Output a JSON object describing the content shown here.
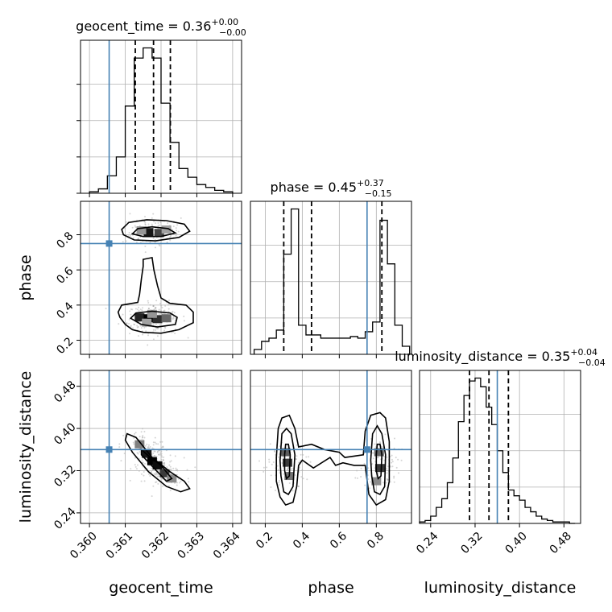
{
  "chart_data": {
    "type": "corner",
    "parameters": [
      "geocent_time",
      "phase",
      "luminosity_distance"
    ],
    "truths": {
      "geocent_time": 0.36055,
      "phase": 0.75,
      "luminosity_distance": 0.36
    },
    "titles": [
      {
        "param": "geocent_time",
        "name": "geocent_time = 0.36",
        "plus": "+0.00",
        "minus": "−0.00"
      },
      {
        "param": "phase",
        "name": "phase = 0.45",
        "plus": "+0.37",
        "minus": "−0.15"
      },
      {
        "param": "luminosity_distance",
        "name": "luminosity_distance = 0.35",
        "plus": "+0.04",
        "minus": "−0.04"
      }
    ],
    "axes": {
      "geocent_time": {
        "range": [
          0.35975,
          0.36425
        ],
        "ticks": [
          0.36,
          0.361,
          0.362,
          0.363,
          0.364
        ],
        "tick_labels": [
          "0.360",
          "0.361",
          "0.362",
          "0.363",
          "0.364"
        ]
      },
      "phase": {
        "range": [
          0.12,
          0.99
        ],
        "ticks": [
          0.2,
          0.4,
          0.6,
          0.8
        ],
        "tick_labels": [
          "0.2",
          "0.4",
          "0.6",
          "0.8"
        ]
      },
      "luminosity_distance": {
        "range": [
          0.22,
          0.51
        ],
        "ticks": [
          0.24,
          0.32,
          0.4,
          0.48
        ],
        "tick_labels": [
          "0.24",
          "0.32",
          "0.40",
          "0.48"
        ]
      }
    },
    "axis_labels": {
      "geocent_time": "geocent_time",
      "phase": "phase",
      "luminosity_distance": "luminosity_distance"
    },
    "histograms": {
      "geocent_time": {
        "quantiles": [
          0.36128,
          0.36179,
          0.36226
        ],
        "edges": [
          0.36,
          0.36025,
          0.3605,
          0.36075,
          0.361,
          0.36125,
          0.3615,
          0.36175,
          0.362,
          0.36225,
          0.3625,
          0.36275,
          0.363,
          0.36325,
          0.3635,
          0.36375,
          0.364
        ],
        "counts": [
          1,
          3,
          12,
          25,
          60,
          93,
          100,
          93,
          62,
          35,
          17,
          11,
          6,
          4,
          2,
          1
        ]
      },
      "phase": {
        "quantiles": [
          0.3,
          0.45,
          0.83
        ],
        "edges": [
          0.14,
          0.18,
          0.22,
          0.26,
          0.3,
          0.34,
          0.38,
          0.42,
          0.46,
          0.5,
          0.54,
          0.58,
          0.62,
          0.66,
          0.7,
          0.74,
          0.78,
          0.82,
          0.86,
          0.9,
          0.94,
          0.98
        ],
        "counts": [
          3,
          8,
          10,
          15,
          62,
          90,
          18,
          12,
          12,
          10,
          10,
          10,
          10,
          11,
          10,
          14,
          20,
          83,
          56,
          18,
          5
        ]
      },
      "luminosity_distance": {
        "quantiles": [
          0.31,
          0.345,
          0.38
        ],
        "edges": [
          0.22,
          0.23,
          0.24,
          0.25,
          0.26,
          0.27,
          0.28,
          0.29,
          0.3,
          0.31,
          0.32,
          0.33,
          0.34,
          0.35,
          0.36,
          0.37,
          0.38,
          0.39,
          0.4,
          0.41,
          0.42,
          0.43,
          0.44,
          0.45,
          0.46,
          0.47,
          0.48,
          0.49,
          0.5
        ],
        "counts": [
          1,
          2,
          5,
          11,
          17,
          28,
          45,
          70,
          88,
          98,
          100,
          94,
          80,
          68,
          50,
          35,
          23,
          19,
          16,
          11,
          8,
          5,
          3,
          2,
          1,
          1,
          1,
          0
        ]
      }
    },
    "joint": [
      {
        "x": "geocent_time",
        "y": "phase",
        "contours": [
          [
            [
              0.3609,
              0.83
            ],
            [
              0.3611,
              0.87
            ],
            [
              0.3616,
              0.885
            ],
            [
              0.36215,
              0.88
            ],
            [
              0.36265,
              0.86
            ],
            [
              0.3628,
              0.82
            ],
            [
              0.3625,
              0.785
            ],
            [
              0.36185,
              0.765
            ],
            [
              0.36125,
              0.77
            ],
            [
              0.36095,
              0.8
            ]
          ],
          [
            [
              0.3612,
              0.805
            ],
            [
              0.36135,
              0.835
            ],
            [
              0.36175,
              0.845
            ],
            [
              0.3622,
              0.835
            ],
            [
              0.3624,
              0.81
            ],
            [
              0.362,
              0.79
            ],
            [
              0.3615,
              0.79
            ]
          ],
          [
            [
              0.3608,
              0.36
            ],
            [
              0.3609,
              0.4
            ],
            [
              0.36135,
              0.415
            ],
            [
              0.3614,
              0.46
            ],
            [
              0.36145,
              0.55
            ],
            [
              0.3615,
              0.62
            ],
            [
              0.3615,
              0.66
            ],
            [
              0.36175,
              0.67
            ],
            [
              0.3618,
              0.6
            ],
            [
              0.3619,
              0.51
            ],
            [
              0.362,
              0.44
            ],
            [
              0.36225,
              0.41
            ],
            [
              0.3627,
              0.4
            ],
            [
              0.3629,
              0.36
            ],
            [
              0.3629,
              0.3
            ],
            [
              0.3625,
              0.26
            ],
            [
              0.362,
              0.24
            ],
            [
              0.3615,
              0.245
            ],
            [
              0.3612,
              0.26
            ],
            [
              0.361,
              0.29
            ],
            [
              0.36085,
              0.33
            ]
          ],
          [
            [
              0.36115,
              0.325
            ],
            [
              0.3613,
              0.355
            ],
            [
              0.36175,
              0.365
            ],
            [
              0.36225,
              0.355
            ],
            [
              0.36245,
              0.33
            ],
            [
              0.3624,
              0.29
            ],
            [
              0.3619,
              0.275
            ],
            [
              0.36145,
              0.29
            ]
          ]
        ],
        "density": [
          {
            "x": 0.36165,
            "y": 0.815,
            "level": 0.9
          },
          {
            "x": 0.36195,
            "y": 0.81,
            "level": 0.7
          },
          {
            "x": 0.36145,
            "y": 0.825,
            "level": 0.35
          },
          {
            "x": 0.36215,
            "y": 0.83,
            "level": 0.3
          },
          {
            "x": 0.3614,
            "y": 0.33,
            "level": 0.85
          },
          {
            "x": 0.36165,
            "y": 0.325,
            "level": 1.0
          },
          {
            "x": 0.3619,
            "y": 0.32,
            "level": 0.8
          },
          {
            "x": 0.36215,
            "y": 0.325,
            "level": 0.55
          },
          {
            "x": 0.36175,
            "y": 0.35,
            "level": 0.35
          },
          {
            "x": 0.3616,
            "y": 0.3,
            "level": 0.3
          }
        ]
      },
      {
        "x": "geocent_time",
        "y": "luminosity_distance",
        "contours": [
          [
            [
              0.36105,
              0.39
            ],
            [
              0.3613,
              0.383
            ],
            [
              0.36175,
              0.345
            ],
            [
              0.36225,
              0.318
            ],
            [
              0.36265,
              0.3
            ],
            [
              0.3628,
              0.286
            ],
            [
              0.36255,
              0.28
            ],
            [
              0.36215,
              0.29
            ],
            [
              0.36165,
              0.318
            ],
            [
              0.3612,
              0.355
            ],
            [
              0.361,
              0.378
            ]
          ],
          [
            [
              0.36145,
              0.36
            ],
            [
              0.36165,
              0.348
            ],
            [
              0.362,
              0.33
            ],
            [
              0.3623,
              0.305
            ],
            [
              0.36215,
              0.3
            ],
            [
              0.3618,
              0.325
            ],
            [
              0.36145,
              0.35
            ]
          ]
        ],
        "density": [
          {
            "x": 0.3616,
            "y": 0.352,
            "level": 0.9
          },
          {
            "x": 0.36175,
            "y": 0.338,
            "level": 1.0
          },
          {
            "x": 0.3619,
            "y": 0.33,
            "level": 0.95
          },
          {
            "x": 0.3621,
            "y": 0.315,
            "level": 0.75
          },
          {
            "x": 0.3614,
            "y": 0.37,
            "level": 0.45
          },
          {
            "x": 0.3623,
            "y": 0.305,
            "level": 0.4
          }
        ]
      },
      {
        "x": "phase",
        "y": "luminosity_distance",
        "contours": [
          [
            [
              0.26,
              0.345
            ],
            [
              0.27,
              0.4
            ],
            [
              0.29,
              0.42
            ],
            [
              0.33,
              0.425
            ],
            [
              0.36,
              0.4
            ],
            [
              0.38,
              0.365
            ],
            [
              0.45,
              0.37
            ],
            [
              0.52,
              0.36
            ],
            [
              0.6,
              0.355
            ],
            [
              0.63,
              0.345
            ],
            [
              0.73,
              0.35
            ],
            [
              0.74,
              0.395
            ],
            [
              0.77,
              0.425
            ],
            [
              0.82,
              0.43
            ],
            [
              0.85,
              0.42
            ],
            [
              0.87,
              0.375
            ],
            [
              0.87,
              0.3
            ],
            [
              0.85,
              0.265
            ],
            [
              0.8,
              0.255
            ],
            [
              0.76,
              0.275
            ],
            [
              0.74,
              0.33
            ],
            [
              0.68,
              0.33
            ],
            [
              0.62,
              0.335
            ],
            [
              0.58,
              0.33
            ],
            [
              0.55,
              0.345
            ],
            [
              0.46,
              0.325
            ],
            [
              0.4,
              0.34
            ],
            [
              0.38,
              0.33
            ],
            [
              0.37,
              0.29
            ],
            [
              0.35,
              0.26
            ],
            [
              0.31,
              0.255
            ],
            [
              0.28,
              0.27
            ],
            [
              0.26,
              0.3
            ]
          ],
          [
            [
              0.28,
              0.34
            ],
            [
              0.29,
              0.39
            ],
            [
              0.315,
              0.4
            ],
            [
              0.34,
              0.39
            ],
            [
              0.36,
              0.35
            ],
            [
              0.35,
              0.29
            ],
            [
              0.325,
              0.275
            ],
            [
              0.3,
              0.28
            ],
            [
              0.285,
              0.31
            ]
          ],
          [
            [
              0.77,
              0.34
            ],
            [
              0.78,
              0.39
            ],
            [
              0.805,
              0.405
            ],
            [
              0.83,
              0.39
            ],
            [
              0.85,
              0.35
            ],
            [
              0.845,
              0.29
            ],
            [
              0.82,
              0.275
            ],
            [
              0.79,
              0.28
            ],
            [
              0.775,
              0.31
            ]
          ],
          [
            [
              0.305,
              0.35
            ],
            [
              0.31,
              0.37
            ],
            [
              0.325,
              0.37
            ],
            [
              0.335,
              0.35
            ],
            [
              0.33,
              0.31
            ],
            [
              0.315,
              0.305
            ],
            [
              0.305,
              0.32
            ]
          ],
          [
            [
              0.8,
              0.35
            ],
            [
              0.805,
              0.37
            ],
            [
              0.82,
              0.37
            ],
            [
              0.83,
              0.35
            ],
            [
              0.825,
              0.31
            ],
            [
              0.81,
              0.305
            ],
            [
              0.8,
              0.32
            ]
          ]
        ],
        "density": [
          {
            "x": 0.31,
            "y": 0.355,
            "level": 0.6
          },
          {
            "x": 0.32,
            "y": 0.335,
            "level": 0.75
          },
          {
            "x": 0.33,
            "y": 0.31,
            "level": 0.5
          },
          {
            "x": 0.815,
            "y": 0.355,
            "level": 0.55
          },
          {
            "x": 0.82,
            "y": 0.325,
            "level": 0.75
          },
          {
            "x": 0.8,
            "y": 0.3,
            "level": 0.4
          }
        ]
      }
    ]
  }
}
